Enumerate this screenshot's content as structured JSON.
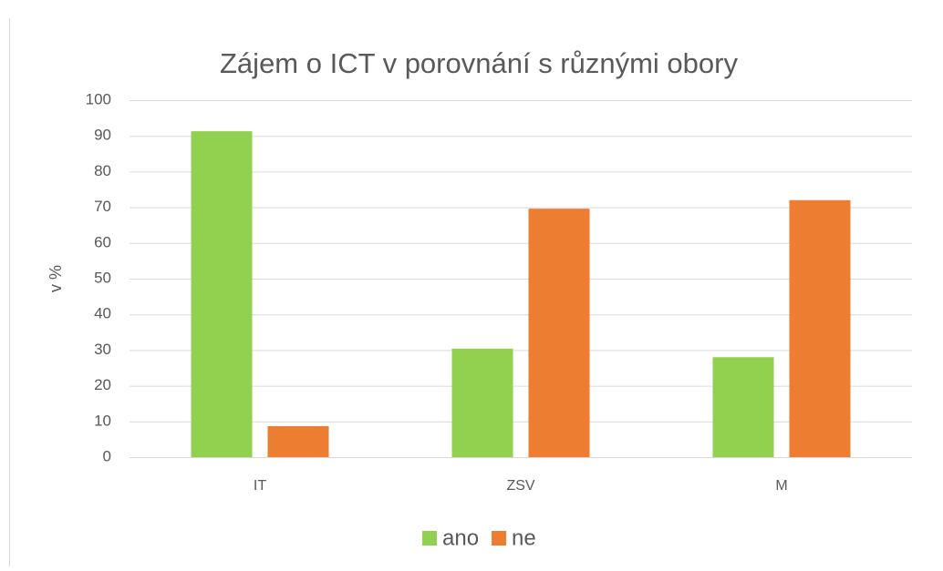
{
  "chart_data": {
    "type": "bar",
    "title": "Zájem o ICT v porovnání s různými obory",
    "y_label": "v %",
    "categories": [
      "IT",
      "ZSV",
      "M"
    ],
    "series": [
      {
        "name": "ano",
        "color": "#92d050",
        "values": [
          91.3,
          30.4,
          28
        ]
      },
      {
        "name": "ne",
        "color": "#ed7d31",
        "values": [
          8.7,
          69.6,
          72
        ]
      }
    ],
    "ylim": [
      0,
      100
    ],
    "yticks": [
      0,
      10,
      20,
      30,
      40,
      50,
      60,
      70,
      80,
      90,
      100
    ],
    "grid": true,
    "legend": "bottom"
  }
}
